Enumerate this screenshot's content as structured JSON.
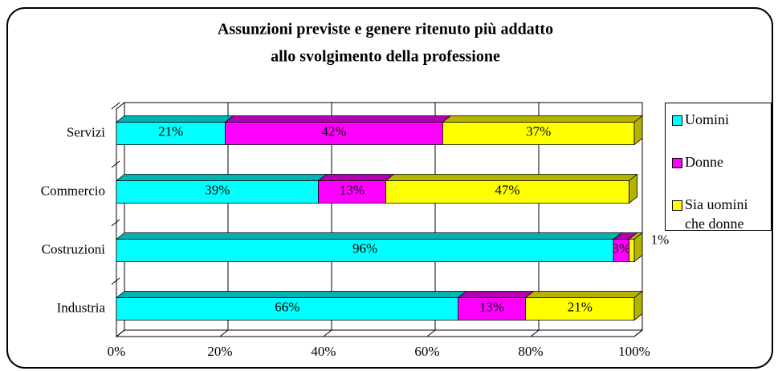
{
  "chart_data": {
    "type": "stacked-bar-horizontal",
    "title": "Assunzioni previste e genere ritenuto più addatto",
    "subtitle": "allo svolgimento della professione",
    "categories": [
      "Servizi",
      "Commercio",
      "Costruzioni",
      "Industria"
    ],
    "series": [
      {
        "name": "Uomini",
        "color": "#00ffff",
        "values": [
          21,
          39,
          96,
          66
        ],
        "value_labels": [
          "21%",
          "39%",
          "96%",
          "66%"
        ]
      },
      {
        "name": "Donne",
        "color": "#ff00ff",
        "values": [
          42,
          13,
          3,
          13
        ],
        "value_labels": [
          "42%",
          "13%",
          "3%",
          "13%"
        ]
      },
      {
        "name": "Sia uomini che donne",
        "color": "#ffff00",
        "values": [
          37,
          47,
          1,
          21
        ],
        "value_labels": [
          "37%",
          "47%",
          "1%",
          "21%"
        ]
      }
    ],
    "xlim": [
      0,
      100
    ],
    "xticks": [
      {
        "value": 0,
        "label": "0%"
      },
      {
        "value": 20,
        "label": "20%"
      },
      {
        "value": 40,
        "label": "40%"
      },
      {
        "value": 60,
        "label": "60%"
      },
      {
        "value": 80,
        "label": "80%"
      },
      {
        "value": 100,
        "label": "100%"
      }
    ],
    "grid": true,
    "legend": "right"
  }
}
